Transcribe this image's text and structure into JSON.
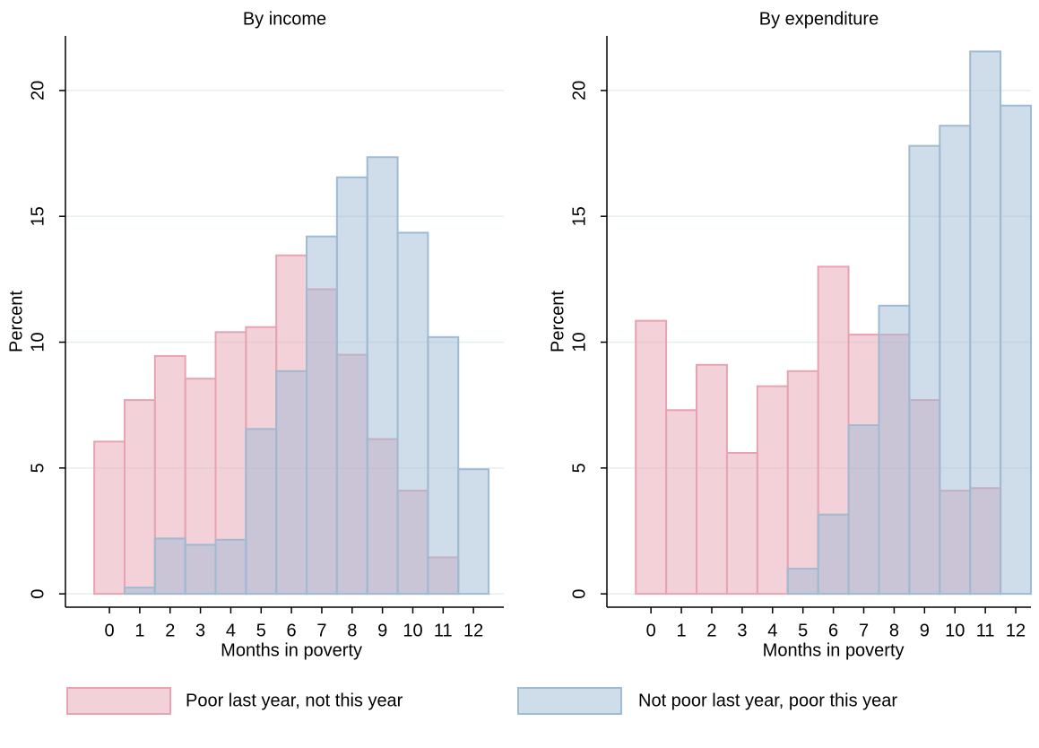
{
  "chart_data": [
    {
      "type": "bar",
      "title": "By income",
      "xlabel": "Months in poverty",
      "ylabel": "Percent",
      "x": [
        0,
        1,
        2,
        3,
        4,
        5,
        6,
        7,
        8,
        9,
        10,
        11,
        12
      ],
      "series": [
        {
          "name": "Poor last year, not this year",
          "color": "#e8a3b1",
          "values": [
            6.05,
            7.7,
            9.45,
            8.55,
            10.4,
            10.6,
            13.45,
            12.1,
            9.5,
            6.15,
            4.1,
            1.45,
            0
          ]
        },
        {
          "name": "Not poor last year, poor this year",
          "color": "#9fbad3",
          "values": [
            0,
            0.25,
            2.2,
            1.95,
            2.15,
            6.55,
            8.85,
            14.2,
            16.55,
            17.35,
            14.35,
            10.2,
            4.95
          ]
        }
      ],
      "xlim": [
        -1.45,
        13
      ],
      "ylim": [
        -0.53,
        22.17
      ],
      "xticks": [
        0,
        1,
        2,
        3,
        4,
        5,
        6,
        7,
        8,
        9,
        10,
        11,
        12
      ],
      "yticks": [
        0,
        5,
        10,
        15,
        20
      ],
      "grid": true
    },
    {
      "type": "bar",
      "title": "By expenditure",
      "xlabel": "Months in poverty",
      "ylabel": "Percent",
      "x": [
        0,
        1,
        2,
        3,
        4,
        5,
        6,
        7,
        8,
        9,
        10,
        11,
        12
      ],
      "series": [
        {
          "color": "#e8a3b1",
          "values": [
            10.85,
            7.3,
            9.1,
            5.6,
            8.25,
            8.85,
            13.0,
            10.3,
            10.3,
            7.7,
            4.1,
            4.2,
            0
          ]
        },
        {
          "color": "#9fbad3",
          "values": [
            0,
            0,
            0,
            0,
            0,
            1.0,
            3.15,
            6.7,
            11.45,
            17.8,
            18.6,
            21.55,
            19.4
          ]
        }
      ],
      "xlim": [
        -1.45,
        12.5
      ],
      "ylim": [
        -0.53,
        22.17
      ],
      "xticks": [
        0,
        1,
        2,
        3,
        4,
        5,
        6,
        7,
        8,
        9,
        10,
        11,
        12
      ],
      "yticks": [
        0,
        5,
        10,
        15,
        20
      ],
      "grid": true
    }
  ]
}
